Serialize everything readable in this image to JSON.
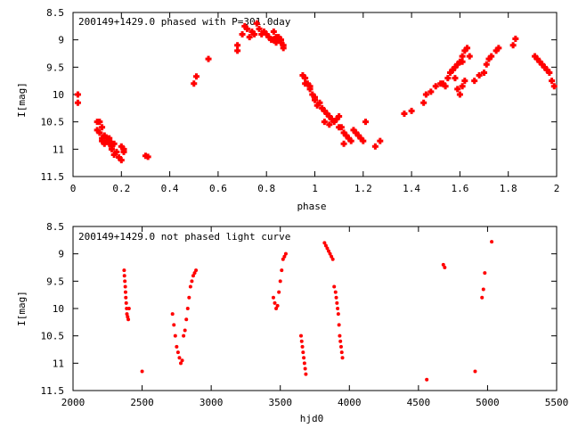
{
  "chart_data": [
    {
      "type": "scatter",
      "title": "200149+1429.0 phased with P=301.0day",
      "xlabel": "phase",
      "ylabel": "I[mag]",
      "xlim": [
        0,
        2
      ],
      "ylim": [
        8.5,
        11.5
      ],
      "y_inverted": true,
      "xticks": [
        "0",
        "0.2",
        "0.4",
        "0.6",
        "0.8",
        "1",
        "1.2",
        "1.4",
        "1.6",
        "1.8",
        "2"
      ],
      "yticks": [
        "8.5",
        "9",
        "9.5",
        "10",
        "10.5",
        "11",
        "11.5"
      ],
      "marker_color": "#ff0000",
      "series": [
        {
          "x": [
            0.02,
            0.02,
            0.1,
            0.11,
            0.1,
            0.12,
            0.11,
            0.12,
            0.13,
            0.12,
            0.14,
            0.15,
            0.13,
            0.14,
            0.15,
            0.16,
            0.15,
            0.16,
            0.17,
            0.16,
            0.18,
            0.17,
            0.19,
            0.2,
            0.21,
            0.2,
            0.21,
            0.3,
            0.31,
            0.5,
            0.51,
            0.56,
            0.68,
            0.68,
            0.7,
            0.72,
            0.73,
            0.71,
            0.74,
            0.75,
            0.76,
            0.77,
            0.78,
            0.79,
            0.8,
            0.81,
            0.82,
            0.83,
            0.84,
            0.85,
            0.86,
            0.87,
            0.87,
            0.86,
            0.85,
            0.84,
            0.83,
            0.95,
            0.96,
            0.97,
            0.98,
            0.99,
            1.0,
            1.01,
            0.96,
            0.98,
            1.0,
            1.02,
            1.03,
            1.04,
            1.05,
            1.06,
            1.07,
            1.04,
            1.06,
            1.08,
            1.09,
            1.1,
            1.11,
            1.12,
            1.13,
            1.14,
            1.15,
            1.1,
            1.12,
            1.16,
            1.17,
            1.18,
            1.19,
            1.2,
            1.21,
            1.25,
            1.27,
            1.37,
            1.4,
            1.45,
            1.46,
            1.48,
            1.5,
            1.52,
            1.53,
            1.55,
            1.54,
            1.56,
            1.57,
            1.58,
            1.59,
            1.6,
            1.61,
            1.62,
            1.63,
            1.58,
            1.59,
            1.6,
            1.61,
            1.62,
            1.57,
            1.61,
            1.64,
            1.66,
            1.68,
            1.7,
            1.71,
            1.72,
            1.73,
            1.75,
            1.76,
            1.82,
            1.83,
            1.91,
            1.92,
            1.93,
            1.94,
            1.95,
            1.96,
            1.97,
            1.98,
            1.99
          ],
          "y": [
            10.15,
            10.0,
            10.5,
            10.5,
            10.65,
            10.6,
            10.7,
            10.85,
            10.9,
            10.8,
            10.85,
            10.9,
            10.75,
            10.8,
            10.85,
            10.95,
            10.8,
            10.9,
            10.9,
            11.0,
            11.05,
            11.1,
            11.15,
            11.2,
            11.0,
            10.95,
            11.05,
            11.12,
            11.14,
            9.8,
            9.67,
            9.35,
            9.1,
            9.2,
            8.9,
            8.8,
            8.95,
            8.75,
            8.85,
            8.9,
            8.7,
            8.8,
            8.9,
            8.85,
            8.9,
            8.95,
            9.0,
            8.85,
            8.95,
            9.0,
            9.05,
            9.1,
            9.15,
            9.0,
            8.95,
            9.05,
            9.0,
            9.65,
            9.7,
            9.8,
            9.9,
            10.0,
            10.1,
            10.2,
            9.8,
            9.85,
            10.05,
            10.15,
            10.25,
            10.3,
            10.35,
            10.4,
            10.45,
            10.5,
            10.55,
            10.5,
            10.45,
            10.4,
            10.6,
            10.7,
            10.75,
            10.8,
            10.85,
            10.6,
            10.9,
            10.65,
            10.7,
            10.75,
            10.8,
            10.85,
            10.5,
            10.95,
            10.85,
            10.35,
            10.3,
            10.15,
            10.0,
            9.95,
            9.85,
            9.8,
            9.8,
            9.7,
            9.85,
            9.6,
            9.55,
            9.5,
            9.45,
            9.4,
            9.3,
            9.2,
            9.15,
            9.7,
            9.9,
            10.0,
            9.85,
            9.75,
            9.55,
            9.4,
            9.3,
            9.75,
            9.65,
            9.6,
            9.45,
            9.35,
            9.3,
            9.2,
            9.15,
            9.1,
            8.98,
            9.3,
            9.35,
            9.4,
            9.45,
            9.5,
            9.55,
            9.6,
            9.75,
            9.85
          ]
        }
      ]
    },
    {
      "type": "scatter",
      "title": "200149+1429.0 not phased light curve",
      "xlabel": "hjd0",
      "ylabel": "I[mag]",
      "xlim": [
        2000,
        5500
      ],
      "ylim": [
        8.5,
        11.5
      ],
      "y_inverted": true,
      "xticks": [
        "2000",
        "2500",
        "3000",
        "3500",
        "4000",
        "4500",
        "5000",
        "5500"
      ],
      "yticks": [
        "8.5",
        "9",
        "9.5",
        "10",
        "10.5",
        "11",
        "11.5"
      ],
      "marker_color": "#ff0000",
      "series": [
        {
          "x": [
            2370,
            2372,
            2375,
            2378,
            2380,
            2382,
            2385,
            2388,
            2390,
            2395,
            2400,
            2405,
            2500,
            2720,
            2730,
            2740,
            2750,
            2760,
            2770,
            2780,
            2790,
            2800,
            2810,
            2820,
            2830,
            2840,
            2850,
            2860,
            2870,
            2880,
            2890,
            3450,
            3460,
            3470,
            3480,
            3490,
            3500,
            3510,
            3520,
            3530,
            3540,
            3650,
            3655,
            3660,
            3665,
            3670,
            3675,
            3680,
            3685,
            3820,
            3830,
            3840,
            3850,
            3860,
            3870,
            3880,
            3890,
            3900,
            3905,
            3910,
            3915,
            3920,
            3925,
            3930,
            3935,
            3940,
            3945,
            3950,
            4560,
            4680,
            4690,
            4910,
            4960,
            4970,
            4980,
            5030
          ],
          "y": [
            9.3,
            9.4,
            9.5,
            9.6,
            9.7,
            9.8,
            9.9,
            10.0,
            10.1,
            10.15,
            10.2,
            10.0,
            11.15,
            10.1,
            10.3,
            10.5,
            10.7,
            10.8,
            10.9,
            11.0,
            10.95,
            10.5,
            10.4,
            10.2,
            10.0,
            9.8,
            9.6,
            9.5,
            9.4,
            9.35,
            9.3,
            9.8,
            9.9,
            10.0,
            9.95,
            9.7,
            9.5,
            9.3,
            9.1,
            9.05,
            9.0,
            10.5,
            10.6,
            10.7,
            10.8,
            10.9,
            11.0,
            11.1,
            11.2,
            8.8,
            8.85,
            8.9,
            8.95,
            9.0,
            9.05,
            9.1,
            9.6,
            9.7,
            9.8,
            9.9,
            10.0,
            10.1,
            10.3,
            10.5,
            10.6,
            10.7,
            10.8,
            10.9,
            11.3,
            9.2,
            9.25,
            11.15,
            9.8,
            9.65,
            9.35,
            8.78
          ]
        }
      ]
    }
  ]
}
